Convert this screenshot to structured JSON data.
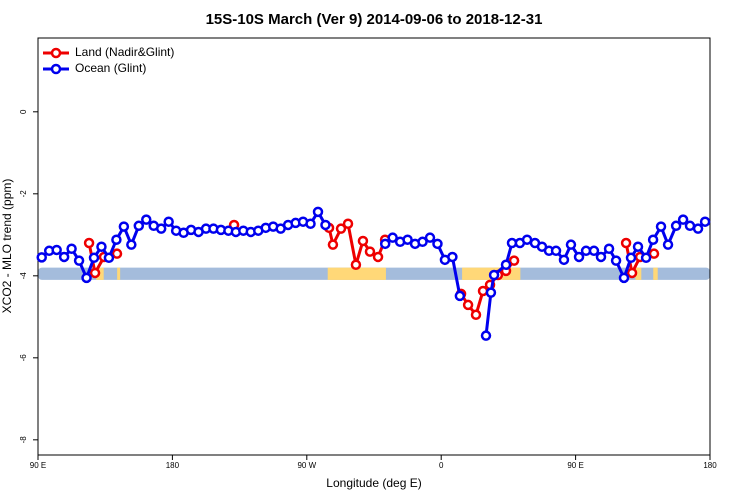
{
  "chart_data": {
    "type": "line",
    "title": "15S-10S March (Ver 9)   2014-09-06 to 2018-12-31",
    "x_label": "Longitude (deg E)",
    "y_label": "XCO2 - MLO trend (ppm)",
    "xlim": [
      90,
      540
    ],
    "xticks": [
      {
        "value": 90,
        "label": "90 E"
      },
      180,
      {
        "value": 270,
        "label": "90 W"
      },
      {
        "value": 360,
        "label": "0"
      },
      {
        "value": 450,
        "label": "90 E"
      },
      {
        "value": 540,
        "label": "180"
      }
    ],
    "ylim": [
      -8.37,
      1.8
    ],
    "yticks": [
      -8,
      -6,
      -4,
      -2,
      0
    ],
    "legend": "top-left",
    "surface_band": {
      "ylim": [
        -4.1,
        -3.8
      ],
      "ocean_color": "#a4bcdc",
      "land_color": "#ffd878",
      "land_spans": [
        [
          129,
          134
        ],
        [
          143,
          145
        ],
        [
          284,
          323
        ],
        [
          374,
          413
        ],
        [
          490,
          494
        ],
        [
          502,
          505
        ]
      ]
    },
    "series": [
      {
        "name": "Land (Nadir&Glint)",
        "color": "#ee0000",
        "x": [
          124.2,
          128.2,
          134.2,
          142.9,
          180,
          221.3,
          250,
          284.9,
          287.5,
          292.9,
          297.6,
          302.9,
          307.6,
          312.3,
          317.7,
          322.4,
          350,
          373.3,
          378.0,
          383.3,
          388.0,
          392.7,
          398.0,
          403.4,
          408.8,
          450,
          483.8,
          487.8,
          493.2,
          502.5
        ],
        "values": [
          -3.2,
          -3.93,
          -3.54,
          -3.46,
          null,
          -2.76,
          null,
          -2.83,
          -3.24,
          -2.85,
          -2.73,
          -3.73,
          -3.15,
          -3.41,
          -3.54,
          -3.12,
          null,
          -4.44,
          -4.71,
          -4.95,
          -4.37,
          -4.22,
          -3.98,
          -3.88,
          -3.63,
          null,
          -3.2,
          -3.93,
          -3.54,
          -3.46
        ]
      },
      {
        "name": "Ocean (Glint)",
        "color": "#0000ee",
        "x": [
          92.5,
          97.5,
          102.5,
          107.5,
          112.5,
          117.5,
          122.5,
          127.5,
          132.5,
          137.5,
          142.5,
          147.5,
          152.5,
          157.5,
          162.5,
          167.5,
          172.5,
          177.5,
          182.5,
          187.5,
          192.5,
          197.5,
          202.5,
          207.5,
          212.5,
          217.5,
          222.5,
          227.5,
          232.5,
          237.5,
          242.5,
          247.5,
          252.5,
          257.5,
          262.5,
          267.5,
          272.5,
          277.5,
          282.5,
          302.5,
          322.5,
          327.5,
          332.5,
          337.5,
          342.5,
          347.5,
          352.5,
          357.5,
          362.5,
          367.5,
          372.5,
          380,
          390.0,
          393.3,
          395.4,
          403.4,
          407.4,
          412.7,
          417.5,
          422.8,
          427.5,
          432.2,
          436.9,
          442.2,
          446.9,
          452.3,
          457.0,
          462.3,
          467.0,
          472.4,
          477.1,
          482.4,
          487.1,
          491.8,
          497.2,
          501.9,
          507.2,
          511.9,
          517.3,
          522.0,
          526.6,
          532.0,
          536.7
        ],
        "values": [
          -3.55,
          -3.39,
          -3.37,
          -3.54,
          -3.34,
          -3.63,
          -4.05,
          -3.56,
          -3.29,
          -3.56,
          -3.12,
          -2.8,
          -3.24,
          -2.78,
          -2.63,
          -2.78,
          -2.85,
          -2.68,
          -2.9,
          -2.95,
          -2.88,
          -2.93,
          -2.85,
          -2.85,
          -2.88,
          -2.9,
          -2.93,
          -2.9,
          -2.93,
          -2.9,
          -2.83,
          -2.8,
          -2.85,
          -2.76,
          -2.71,
          -2.68,
          -2.73,
          -2.44,
          -2.76,
          null,
          -3.22,
          -3.07,
          -3.17,
          -3.12,
          -3.22,
          -3.17,
          -3.07,
          -3.22,
          -3.61,
          -3.54,
          -4.49,
          null,
          -5.46,
          -4.41,
          -3.98,
          -3.73,
          -3.2,
          -3.2,
          -3.12,
          -3.2,
          -3.29,
          -3.39,
          -3.39,
          -3.61,
          -3.24,
          -3.54,
          -3.39,
          -3.39,
          -3.54,
          -3.34,
          -3.63,
          -4.05,
          -3.56,
          -3.29,
          -3.56,
          -3.12,
          -2.8,
          -3.24,
          -2.78,
          -2.63,
          -2.78,
          -2.85,
          -2.68
        ]
      }
    ]
  }
}
